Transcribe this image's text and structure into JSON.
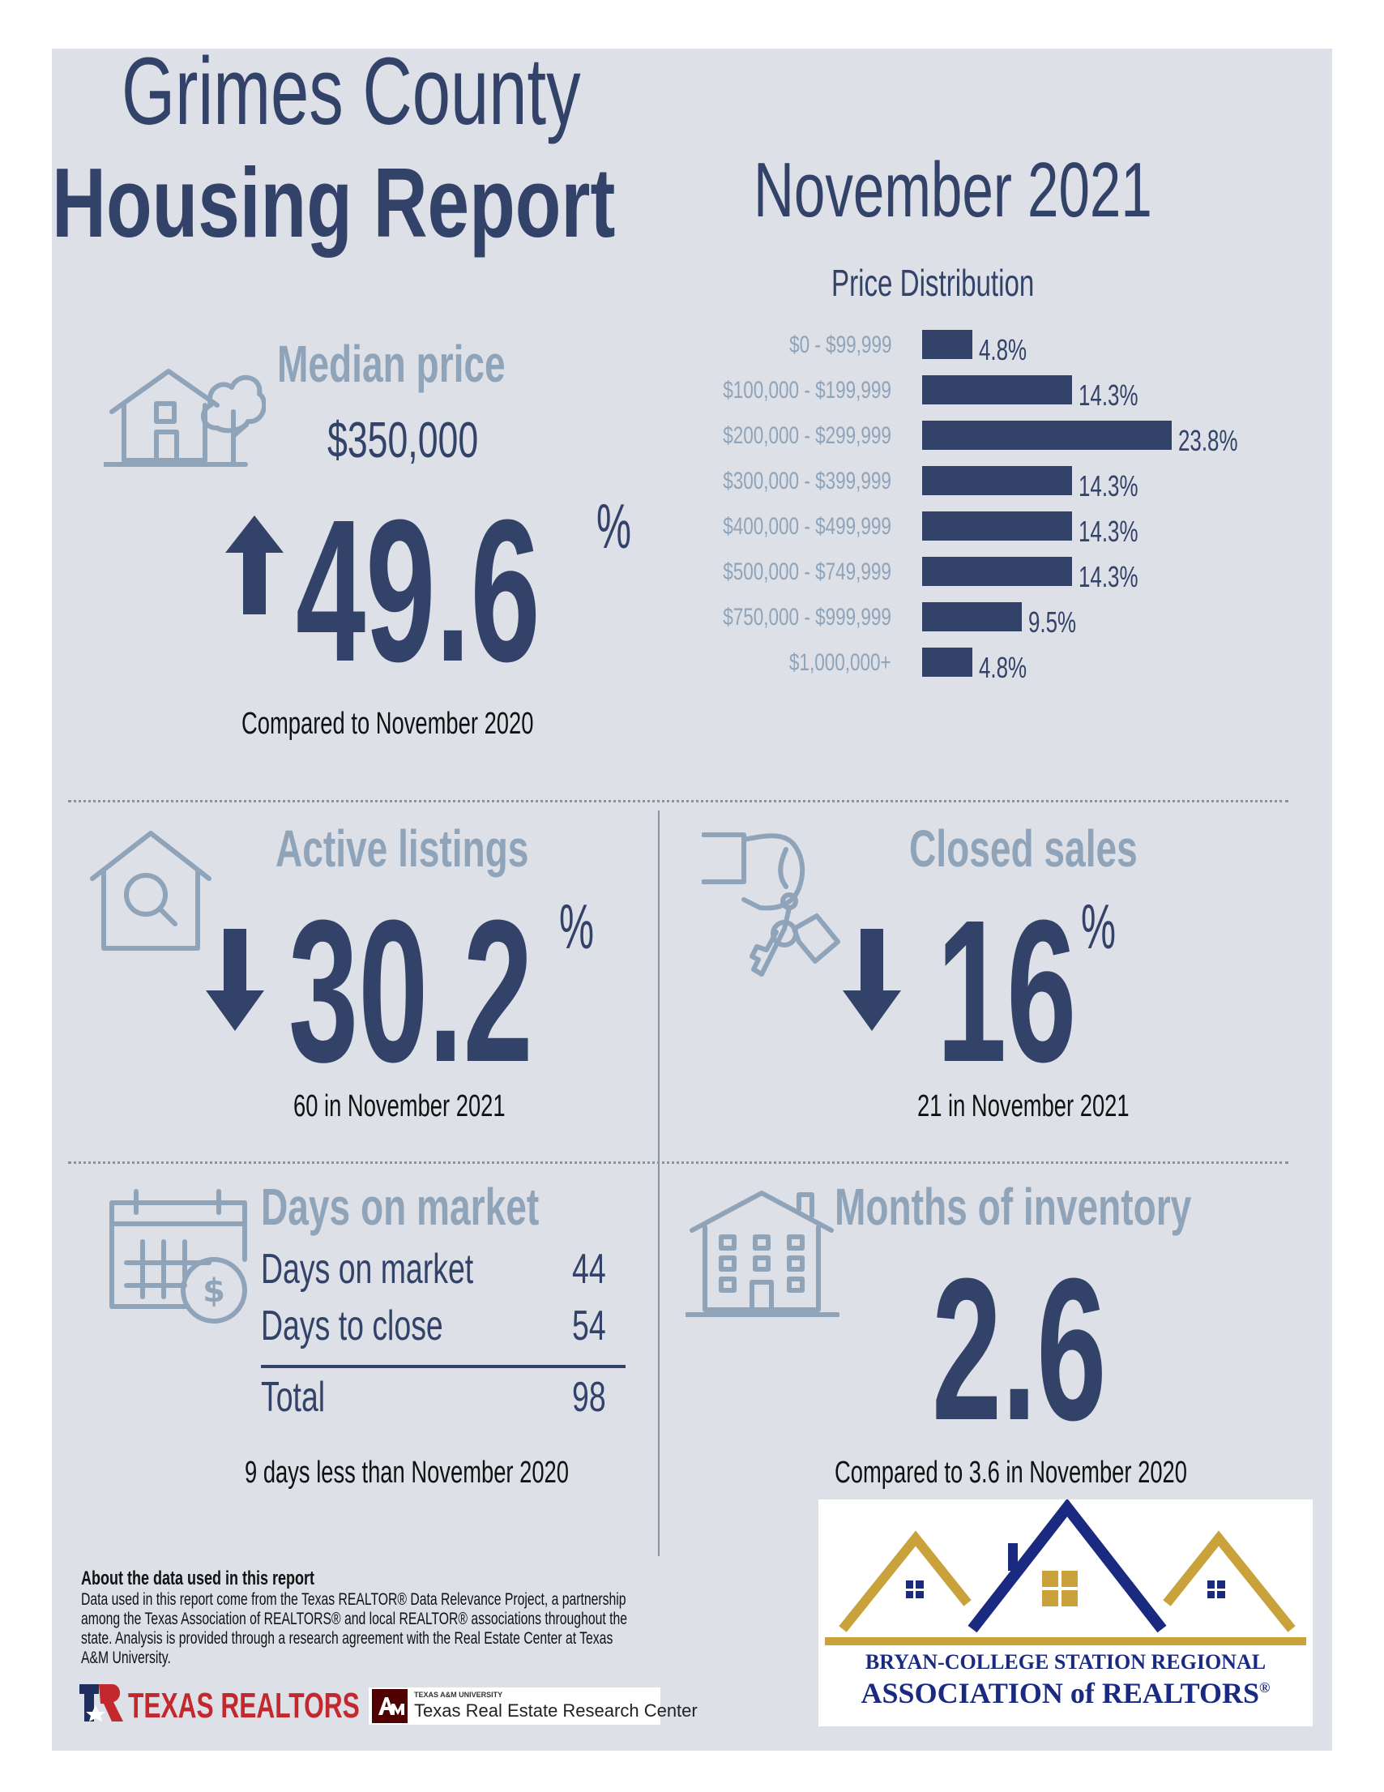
{
  "header": {
    "title_line1": "Grimes County",
    "title_line2": "Housing Report",
    "month": "November 2021"
  },
  "median_price": {
    "heading": "Median price",
    "value": "$350,000",
    "change": "49.6",
    "unit": "%",
    "direction": "up",
    "caption": "Compared to November 2020",
    "icon": "house-with-tree-icon"
  },
  "price_distribution": {
    "title": "Price Distribution"
  },
  "chart_data": {
    "type": "bar",
    "orientation": "horizontal",
    "title": "Price Distribution",
    "categories": [
      "$0 - $99,999",
      "$100,000 - $199,999",
      "$200,000 - $299,999",
      "$300,000 - $399,999",
      "$400,000 - $499,999",
      "$500,000 - $749,999",
      "$750,000 - $999,999",
      "$1,000,000+"
    ],
    "values": [
      4.8,
      14.3,
      23.8,
      14.3,
      14.3,
      14.3,
      9.5,
      4.8
    ],
    "labels": [
      "4.8%",
      "14.3%",
      "23.8%",
      "14.3%",
      "14.3%",
      "14.3%",
      "9.5%",
      "4.8%"
    ],
    "grid": false,
    "bar_color": "#324269"
  },
  "active_listings": {
    "heading": "Active listings",
    "change": "30.2",
    "unit": "%",
    "direction": "down",
    "caption": "60 in November 2021",
    "icon": "house-magnifier-icon"
  },
  "closed_sales": {
    "heading": "Closed sales",
    "change": "16",
    "unit": "%",
    "direction": "down",
    "caption": "21 in November 2021",
    "icon": "hand-keys-icon"
  },
  "days_on_market": {
    "heading": "Days on market",
    "rows": [
      {
        "label": "Days on market",
        "value": "44"
      },
      {
        "label": "Days to close",
        "value": "54"
      }
    ],
    "total_label": "Total",
    "total_value": "98",
    "caption": "9 days less than November 2020",
    "icon": "calendar-dollar-icon"
  },
  "months_inventory": {
    "heading": "Months of inventory",
    "value": "2.6",
    "caption": "Compared to 3.6 in November 2020",
    "icon": "apartment-building-icon"
  },
  "about": {
    "title": "About the data used in this report",
    "body": "Data used in this report come from the Texas REALTOR® Data Relevance Project, a partnership among the Texas Association of REALTORS® and local REALTOR® associations throughout the state. Analysis is provided through a research agreement with the Real Estate Center at Texas A&M University."
  },
  "logos": {
    "texas_realtors": "TEXAS REALTORS",
    "tamu_small": "TEXAS A&M UNIVERSITY",
    "tamu_name": "Texas Real Estate Research Center",
    "bcs_line1": "BRYAN-COLLEGE STATION REGIONAL",
    "bcs_line2": "ASSOCIATION of REALTORS",
    "bcs_reg": "®"
  },
  "colors": {
    "navy": "#324269",
    "light": "#8fa3b9",
    "panel": "#dde0e6",
    "gold": "#c9a23c"
  }
}
